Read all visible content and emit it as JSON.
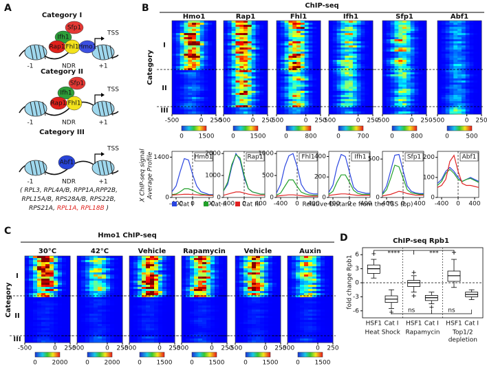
{
  "panel_a": {
    "label": "A",
    "categories": [
      {
        "title": "Category I",
        "proteins": [
          "Sfp1",
          "Ifh1",
          "Rap1",
          "Fhl1",
          "Hmo1"
        ],
        "tss": "TSS",
        "minus": "-1",
        "ndr": "NDR",
        "plus": "+1"
      },
      {
        "title": "Category II",
        "proteins": [
          "Sfp1",
          "Ifh1",
          "Rap1",
          "Fhl1"
        ],
        "tss": "TSS",
        "minus": "-1",
        "ndr": "NDR",
        "plus": "+1"
      },
      {
        "title": "Category III",
        "proteins": [
          "Abf1"
        ],
        "tss": "TSS",
        "minus": "-1",
        "ndr": "NDR",
        "plus": "+1"
      }
    ],
    "genes": [
      [
        {
          "text": "( RPL3, RPL4A/B, RPP1A,RPP2B,"
        }
      ],
      [
        {
          "text": "RPL15A/B, RPS28A/B, RPS22B,"
        }
      ],
      [
        {
          "text": "RPS21A, "
        },
        {
          "text": "RPL1A, RPL18B",
          "color": "#e0201b"
        },
        {
          "text": " )"
        }
      ]
    ]
  },
  "panel_b": {
    "label": "B",
    "title": "ChIP-seq",
    "category_label": "Category",
    "categories": [
      "I",
      "II",
      "III"
    ],
    "heatmaps": [
      {
        "name": "Hmo1",
        "xticks": [
          -500,
          0,
          250
        ],
        "colorbar": [
          0,
          1500
        ]
      },
      {
        "name": "Rap1",
        "xticks": [
          -500,
          0,
          250
        ],
        "colorbar": [
          0,
          1500
        ]
      },
      {
        "name": "Fhl1",
        "xticks": [
          -500,
          0,
          250
        ],
        "colorbar": [
          0,
          800
        ]
      },
      {
        "name": "Ifh1",
        "xticks": [
          -500,
          0,
          250
        ],
        "colorbar": [
          0,
          700
        ]
      },
      {
        "name": "Sfp1",
        "xticks": [
          -500,
          0,
          250
        ],
        "colorbar": [
          0,
          800
        ]
      },
      {
        "name": "Abf1",
        "xticks": [
          -500,
          0,
          250
        ],
        "colorbar": [
          0,
          500
        ]
      }
    ],
    "profile_ylabel": [
      "X ChIP-seq signal",
      "Average Profile"
    ],
    "profile_xlabel": "Relative Distance from the TSS (bp)",
    "legend": [
      {
        "name": "Cat I",
        "color": "#2a45e0"
      },
      {
        "name": "Cat II",
        "color": "#22a02a"
      },
      {
        "name": "Cat III",
        "color": "#e02222"
      }
    ],
    "profiles": [
      {
        "name": "Hmo1",
        "ylim": [
          0,
          1600
        ],
        "yticks": [
          0,
          1400
        ],
        "xlim": [
          -500,
          500
        ],
        "xticks": [
          -400,
          0,
          400
        ],
        "x": [
          -500,
          -400,
          -300,
          -200,
          -100,
          0,
          100,
          200,
          300,
          400,
          500
        ],
        "series": [
          {
            "values": [
              200,
              400,
              900,
              1350,
              1300,
              800,
              400,
              200,
              150,
              100,
              100
            ]
          },
          {
            "values": [
              100,
              120,
              200,
              300,
              300,
              250,
              180,
              120,
              100,
              80,
              80
            ]
          },
          {
            "values": [
              80,
              90,
              100,
              110,
              110,
              100,
              90,
              80,
              80,
              70,
              70
            ]
          }
        ]
      },
      {
        "name": "Rap1",
        "ylim": [
          0,
          2100
        ],
        "yticks": [
          0,
          1000,
          2000
        ],
        "xlim": [
          -500,
          500
        ],
        "xticks": [
          -400,
          0,
          400
        ],
        "x": [
          -500,
          -400,
          -300,
          -200,
          -100,
          0,
          100,
          200,
          300,
          400,
          500
        ],
        "series": [
          {
            "values": [
              300,
              600,
              1400,
              2000,
              1700,
              900,
              400,
              250,
              200,
              150,
              150
            ]
          },
          {
            "values": [
              300,
              700,
              1500,
              1950,
              1800,
              1000,
              400,
              250,
              200,
              150,
              150
            ]
          },
          {
            "values": [
              100,
              150,
              200,
              250,
              250,
              200,
              150,
              120,
              100,
              100,
              100
            ]
          }
        ]
      },
      {
        "name": "Fhl1",
        "ylim": [
          0,
          1050
        ],
        "yticks": [
          0,
          500,
          1000
        ],
        "xlim": [
          -500,
          500
        ],
        "xticks": [
          -400,
          0,
          400
        ],
        "x": [
          -500,
          -400,
          -300,
          -200,
          -100,
          0,
          100,
          200,
          300,
          400,
          500
        ],
        "series": [
          {
            "values": [
              100,
              300,
              700,
              950,
              1000,
              700,
              300,
              150,
              100,
              80,
              80
            ]
          },
          {
            "values": [
              50,
              100,
              250,
              400,
              400,
              250,
              120,
              80,
              60,
              50,
              50
            ]
          },
          {
            "values": [
              30,
              40,
              50,
              60,
              60,
              50,
              40,
              30,
              30,
              30,
              30
            ]
          }
        ]
      },
      {
        "name": "Ifh1",
        "ylim": [
          0,
          450
        ],
        "yticks": [
          0,
          200,
          400
        ],
        "xlim": [
          -500,
          500
        ],
        "xticks": [
          -400,
          0,
          400
        ],
        "x": [
          -500,
          -400,
          -300,
          -200,
          -100,
          0,
          100,
          200,
          300,
          400,
          500
        ],
        "series": [
          {
            "values": [
              50,
              120,
              300,
              420,
              400,
              250,
              100,
              60,
              50,
              40,
              40
            ]
          },
          {
            "values": [
              30,
              60,
              150,
              220,
              220,
              150,
              70,
              40,
              30,
              30,
              30
            ]
          },
          {
            "values": [
              20,
              25,
              30,
              35,
              35,
              30,
              25,
              20,
              20,
              20,
              20
            ]
          }
        ]
      },
      {
        "name": "Sfp1",
        "ylim": [
          0,
          600
        ],
        "yticks": [
          0,
          500
        ],
        "xlim": [
          -500,
          500
        ],
        "xticks": [
          -400,
          0,
          400
        ],
        "x": [
          -500,
          -400,
          -300,
          -200,
          -100,
          0,
          100,
          200,
          300,
          400,
          500
        ],
        "series": [
          {
            "values": [
              50,
              150,
              350,
              550,
              560,
              350,
              150,
              80,
              60,
              50,
              50
            ]
          },
          {
            "values": [
              40,
              100,
              250,
              420,
              400,
              250,
              100,
              60,
              50,
              40,
              40
            ]
          },
          {
            "values": [
              20,
              30,
              40,
              60,
              80,
              70,
              50,
              40,
              30,
              30,
              30
            ]
          }
        ]
      },
      {
        "name": "Abf1",
        "ylim": [
          0,
          230
        ],
        "yticks": [
          0,
          100,
          200
        ],
        "xlim": [
          -500,
          500
        ],
        "xticks": [
          -400,
          0,
          400
        ],
        "x": [
          -500,
          -400,
          -300,
          -200,
          -100,
          0,
          100,
          200,
          300,
          400,
          500
        ],
        "series": [
          {
            "values": [
              70,
              90,
              130,
              150,
              130,
              100,
              80,
              90,
              100,
              90,
              80
            ]
          },
          {
            "values": [
              60,
              80,
              120,
              140,
              120,
              90,
              80,
              90,
              95,
              85,
              75
            ]
          },
          {
            "values": [
              50,
              60,
              90,
              180,
              210,
              130,
              70,
              60,
              60,
              55,
              50
            ]
          }
        ]
      }
    ]
  },
  "panel_c": {
    "label": "C",
    "title": "Hmo1 ChIP-seq",
    "category_label": "Category",
    "categories": [
      "I",
      "II",
      "III"
    ],
    "heatmaps": [
      {
        "name": "30°C",
        "xticks": [
          -500,
          0,
          250
        ],
        "colorbar": [
          0,
          2000
        ]
      },
      {
        "name": "42°C",
        "xticks": [
          -500,
          0,
          250
        ],
        "colorbar": [
          0,
          2000
        ]
      },
      {
        "name": "Vehicle",
        "xticks": [
          -500,
          0,
          250
        ],
        "colorbar": [
          0,
          1500
        ]
      },
      {
        "name": "Rapamycin",
        "xticks": [
          -500,
          0,
          250
        ],
        "colorbar": [
          0,
          1500
        ]
      },
      {
        "name": "Vehicle",
        "xticks": [
          -500,
          0,
          250
        ],
        "colorbar": [
          0,
          1500
        ]
      },
      {
        "name": "Auxin",
        "xticks": [
          -500,
          0,
          250
        ],
        "colorbar": [
          0,
          1500
        ]
      }
    ]
  },
  "panel_d": {
    "label": "D",
    "title": "ChIP-seq Rpb1",
    "ylabel": "fold change Rpb1",
    "ylim": [
      -7.5,
      7.5
    ],
    "yticks": [
      -6,
      -3,
      0,
      3,
      6
    ],
    "categories": [
      "HSF1",
      "Cat I",
      "HSF1",
      "Cat I",
      "HSF1",
      "Cat I"
    ],
    "boxes": [
      {
        "min": 1,
        "q1": 2,
        "median": 3,
        "q3": 3.8,
        "max": 5,
        "fliers": [
          6.2
        ]
      },
      {
        "min": -5.5,
        "q1": -4.2,
        "median": -3.5,
        "q3": -2.8,
        "max": -1.5,
        "fliers": [
          -6.3
        ]
      },
      {
        "min": -2,
        "q1": -0.8,
        "median": 0,
        "q3": 0.5,
        "max": 1.5,
        "fliers": [
          -2.8,
          2.2
        ]
      },
      {
        "min": -4.5,
        "q1": -3.8,
        "median": -3.2,
        "q3": -2.7,
        "max": -2,
        "fliers": [
          -5.2
        ]
      },
      {
        "min": -1,
        "q1": 0.3,
        "median": 1.5,
        "q3": 2.5,
        "max": 5,
        "fliers": [
          6.5
        ]
      },
      {
        "min": -3.6,
        "q1": -3,
        "median": -2.5,
        "q3": -2,
        "max": -1.5,
        "fliers": []
      }
    ],
    "groups": [
      [
        "Heat Shock"
      ],
      [
        "Rapamycin"
      ],
      [
        "Top1/2",
        "depletion"
      ]
    ],
    "significance": [
      "****",
      "***",
      "ns",
      "ns"
    ]
  }
}
